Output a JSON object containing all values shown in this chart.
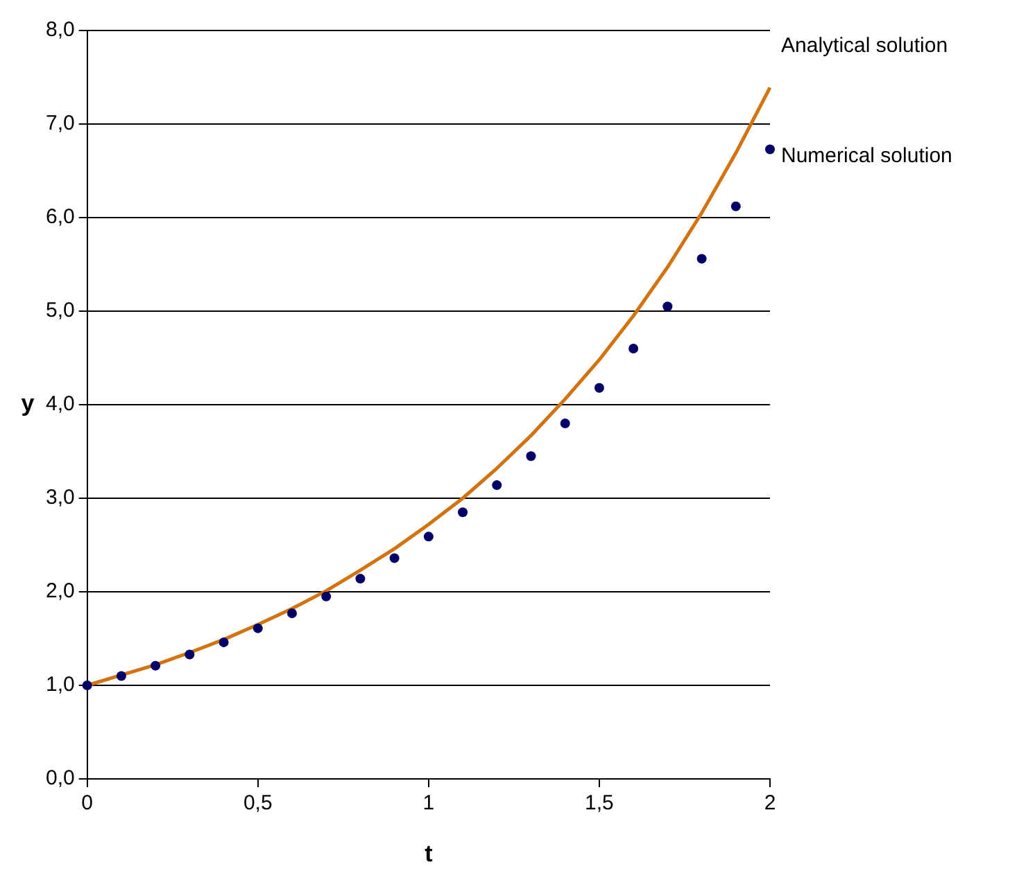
{
  "chart_data": {
    "type": "line",
    "xlabel": "t",
    "ylabel": "y",
    "x": [
      0,
      0.1,
      0.2,
      0.3,
      0.4,
      0.5,
      0.6,
      0.7,
      0.8,
      0.9,
      1,
      1.1,
      1.2,
      1.3,
      1.4,
      1.5,
      1.6,
      1.7,
      1.8,
      1.9,
      2
    ],
    "series": [
      {
        "name": "Analytical solution",
        "type": "line",
        "color": "#d2730f",
        "marker": "none",
        "values": [
          1,
          1.11,
          1.22,
          1.35,
          1.49,
          1.65,
          1.82,
          2.01,
          2.23,
          2.46,
          2.72,
          3.0,
          3.32,
          3.67,
          4.06,
          4.48,
          4.95,
          5.47,
          6.05,
          6.69,
          7.39
        ]
      },
      {
        "name": "Numerical solution",
        "type": "scatter",
        "color": "#000066",
        "marker": "circle",
        "values": [
          1,
          1.1,
          1.21,
          1.33,
          1.46,
          1.61,
          1.77,
          1.95,
          2.14,
          2.36,
          2.59,
          2.85,
          3.14,
          3.45,
          3.8,
          4.18,
          4.6,
          5.05,
          5.56,
          6.12,
          6.73
        ]
      }
    ],
    "xlim": [
      0,
      2
    ],
    "xticks": [
      0,
      {
        "value": 0.5,
        "label": "0,5"
      },
      1,
      {
        "value": 1.5,
        "label": "1,5"
      },
      2
    ],
    "ylim": [
      0,
      8
    ],
    "yticks": [
      {
        "value": 0,
        "label": "0,0"
      },
      {
        "value": 1,
        "label": "1,0"
      },
      {
        "value": 2,
        "label": "2,0"
      },
      {
        "value": 3,
        "label": "3,0"
      },
      {
        "value": 4,
        "label": "4,0"
      },
      {
        "value": 5,
        "label": "5,0"
      },
      {
        "value": 6,
        "label": "6,0"
      },
      {
        "value": 7,
        "label": "7,0"
      },
      {
        "value": 8,
        "label": "8,0"
      }
    ],
    "grid": "y",
    "legend": false
  }
}
